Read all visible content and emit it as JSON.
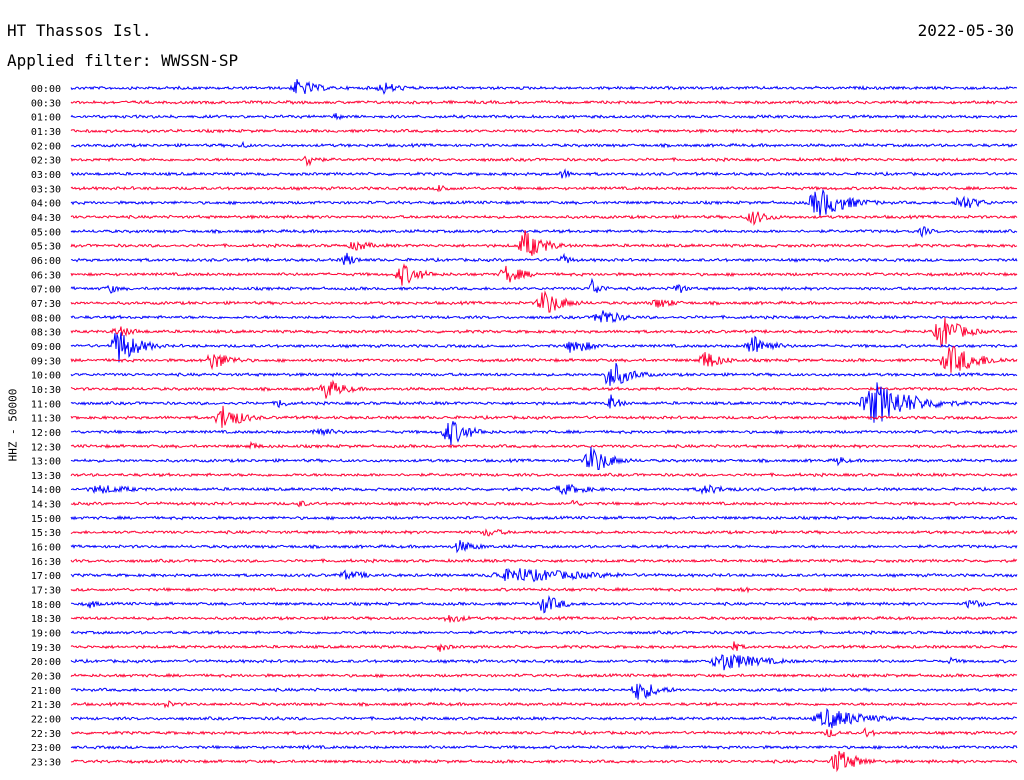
{
  "header": {
    "station": "HT Thassos Isl.",
    "date": "2022-05-30",
    "filter_label": "Applied filter: WWSSN-SP"
  },
  "axis": {
    "ylabel": "HHZ - 50000"
  },
  "colors": {
    "trace_even": "#0000ff",
    "trace_odd": "#ff0033",
    "text": "#000000"
  },
  "chart_data": {
    "type": "line",
    "kind": "helicorder",
    "channel": "HHZ",
    "date": "2022-05-30",
    "row_labels": [
      "00:00",
      "00:30",
      "01:00",
      "01:30",
      "02:00",
      "02:30",
      "03:00",
      "03:30",
      "04:00",
      "04:30",
      "05:00",
      "05:30",
      "06:00",
      "06:30",
      "07:00",
      "07:30",
      "08:00",
      "08:30",
      "09:00",
      "09:30",
      "10:00",
      "10:30",
      "11:00",
      "11:30",
      "12:00",
      "12:30",
      "13:00",
      "13:30",
      "14:00",
      "14:30",
      "15:00",
      "15:30",
      "16:00",
      "16:30",
      "17:00",
      "17:30",
      "18:00",
      "18:30",
      "19:00",
      "19:30",
      "20:00",
      "20:30",
      "21:00",
      "21:30",
      "22:00",
      "22:30",
      "23:00",
      "23:30"
    ],
    "row_colors": [
      "blue",
      "red"
    ],
    "events": [
      {
        "row": 0,
        "pos": 0.24,
        "amp": 10,
        "dur": 0.02
      },
      {
        "row": 0,
        "pos": 0.33,
        "amp": 7,
        "dur": 0.02
      },
      {
        "row": 2,
        "pos": 0.28,
        "amp": 4,
        "dur": 0.01
      },
      {
        "row": 4,
        "pos": 0.18,
        "amp": 4,
        "dur": 0.01
      },
      {
        "row": 5,
        "pos": 0.25,
        "amp": 9,
        "dur": 0.01
      },
      {
        "row": 6,
        "pos": 0.52,
        "amp": 6,
        "dur": 0.01
      },
      {
        "row": 7,
        "pos": 0.39,
        "amp": 6,
        "dur": 0.01
      },
      {
        "row": 8,
        "pos": 0.79,
        "amp": 16,
        "dur": 0.03
      },
      {
        "row": 8,
        "pos": 0.94,
        "amp": 9,
        "dur": 0.02
      },
      {
        "row": 9,
        "pos": 0.72,
        "amp": 8,
        "dur": 0.02
      },
      {
        "row": 10,
        "pos": 0.9,
        "amp": 6,
        "dur": 0.01
      },
      {
        "row": 11,
        "pos": 0.3,
        "amp": 6,
        "dur": 0.02
      },
      {
        "row": 11,
        "pos": 0.48,
        "amp": 16,
        "dur": 0.02
      },
      {
        "row": 12,
        "pos": 0.29,
        "amp": 9,
        "dur": 0.01
      },
      {
        "row": 12,
        "pos": 0.52,
        "amp": 6,
        "dur": 0.01
      },
      {
        "row": 13,
        "pos": 0.35,
        "amp": 12,
        "dur": 0.02
      },
      {
        "row": 13,
        "pos": 0.46,
        "amp": 10,
        "dur": 0.02
      },
      {
        "row": 14,
        "pos": 0.04,
        "amp": 6,
        "dur": 0.01
      },
      {
        "row": 14,
        "pos": 0.55,
        "amp": 11,
        "dur": 0.01
      },
      {
        "row": 14,
        "pos": 0.64,
        "amp": 7,
        "dur": 0.01
      },
      {
        "row": 15,
        "pos": 0.5,
        "amp": 14,
        "dur": 0.02
      },
      {
        "row": 15,
        "pos": 0.62,
        "amp": 6,
        "dur": 0.02
      },
      {
        "row": 16,
        "pos": 0.56,
        "amp": 10,
        "dur": 0.02
      },
      {
        "row": 17,
        "pos": 0.05,
        "amp": 6,
        "dur": 0.02
      },
      {
        "row": 17,
        "pos": 0.92,
        "amp": 18,
        "dur": 0.02
      },
      {
        "row": 18,
        "pos": 0.05,
        "amp": 20,
        "dur": 0.02
      },
      {
        "row": 18,
        "pos": 0.53,
        "amp": 9,
        "dur": 0.02
      },
      {
        "row": 18,
        "pos": 0.72,
        "amp": 12,
        "dur": 0.02
      },
      {
        "row": 19,
        "pos": 0.15,
        "amp": 10,
        "dur": 0.02
      },
      {
        "row": 19,
        "pos": 0.67,
        "amp": 10,
        "dur": 0.02
      },
      {
        "row": 19,
        "pos": 0.93,
        "amp": 16,
        "dur": 0.03
      },
      {
        "row": 20,
        "pos": 0.57,
        "amp": 16,
        "dur": 0.02
      },
      {
        "row": 21,
        "pos": 0.27,
        "amp": 11,
        "dur": 0.02
      },
      {
        "row": 22,
        "pos": 0.22,
        "amp": 6,
        "dur": 0.01
      },
      {
        "row": 22,
        "pos": 0.57,
        "amp": 10,
        "dur": 0.01
      },
      {
        "row": 22,
        "pos": 0.85,
        "amp": 22,
        "dur": 0.04
      },
      {
        "row": 23,
        "pos": 0.16,
        "amp": 14,
        "dur": 0.02
      },
      {
        "row": 24,
        "pos": 0.26,
        "amp": 6,
        "dur": 0.02
      },
      {
        "row": 24,
        "pos": 0.4,
        "amp": 15,
        "dur": 0.02
      },
      {
        "row": 25,
        "pos": 0.19,
        "amp": 5,
        "dur": 0.01
      },
      {
        "row": 26,
        "pos": 0.55,
        "amp": 15,
        "dur": 0.02
      },
      {
        "row": 26,
        "pos": 0.81,
        "amp": 6,
        "dur": 0.01
      },
      {
        "row": 28,
        "pos": 0.03,
        "amp": 5,
        "dur": 0.04
      },
      {
        "row": 28,
        "pos": 0.52,
        "amp": 6,
        "dur": 0.03
      },
      {
        "row": 28,
        "pos": 0.67,
        "amp": 5,
        "dur": 0.03
      },
      {
        "row": 29,
        "pos": 0.24,
        "amp": 5,
        "dur": 0.01
      },
      {
        "row": 29,
        "pos": 0.53,
        "amp": 5,
        "dur": 0.01
      },
      {
        "row": 31,
        "pos": 0.44,
        "amp": 5,
        "dur": 0.02
      },
      {
        "row": 32,
        "pos": 0.41,
        "amp": 7,
        "dur": 0.02
      },
      {
        "row": 34,
        "pos": 0.29,
        "amp": 5,
        "dur": 0.03
      },
      {
        "row": 34,
        "pos": 0.47,
        "amp": 8,
        "dur": 0.08
      },
      {
        "row": 35,
        "pos": 0.71,
        "amp": 4,
        "dur": 0.01
      },
      {
        "row": 36,
        "pos": 0.02,
        "amp": 5,
        "dur": 0.01
      },
      {
        "row": 36,
        "pos": 0.5,
        "amp": 10,
        "dur": 0.02
      },
      {
        "row": 36,
        "pos": 0.95,
        "amp": 5,
        "dur": 0.02
      },
      {
        "row": 37,
        "pos": 0.4,
        "amp": 5,
        "dur": 0.02
      },
      {
        "row": 39,
        "pos": 0.39,
        "amp": 6,
        "dur": 0.01
      },
      {
        "row": 39,
        "pos": 0.7,
        "amp": 6,
        "dur": 0.01
      },
      {
        "row": 40,
        "pos": 0.69,
        "amp": 10,
        "dur": 0.04
      },
      {
        "row": 40,
        "pos": 0.93,
        "amp": 4,
        "dur": 0.01
      },
      {
        "row": 42,
        "pos": 0.6,
        "amp": 12,
        "dur": 0.02
      },
      {
        "row": 43,
        "pos": 0.1,
        "amp": 5,
        "dur": 0.01
      },
      {
        "row": 44,
        "pos": 0.22,
        "amp": 3,
        "dur": 0.01
      },
      {
        "row": 44,
        "pos": 0.8,
        "amp": 11,
        "dur": 0.04
      },
      {
        "row": 45,
        "pos": 0.8,
        "amp": 6,
        "dur": 0.01
      },
      {
        "row": 45,
        "pos": 0.84,
        "amp": 6,
        "dur": 0.01
      },
      {
        "row": 46,
        "pos": 0.25,
        "amp": 2,
        "dur": 0.04
      },
      {
        "row": 47,
        "pos": 0.81,
        "amp": 14,
        "dur": 0.02
      }
    ]
  }
}
